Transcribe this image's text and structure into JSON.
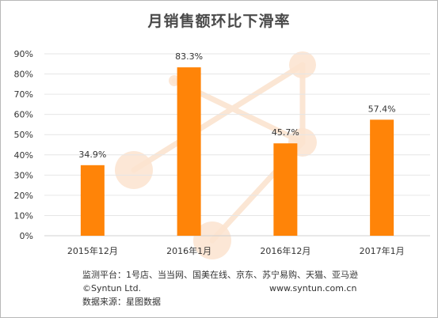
{
  "chart_data": {
    "type": "bar",
    "title": "月销售额环比下滑率",
    "categories": [
      "2015年12月",
      "2016年1月",
      "2016年12月",
      "2017年1月"
    ],
    "values": [
      34.9,
      83.3,
      45.7,
      57.4
    ],
    "value_labels": [
      "34.9%",
      "83.3%",
      "45.7%",
      "57.4%"
    ],
    "ylim": [
      0,
      90
    ],
    "y_ticks": [
      "0%",
      "10%",
      "20%",
      "30%",
      "40%",
      "50%",
      "60%",
      "70%",
      "80%",
      "90%"
    ],
    "y_tick_values": [
      0,
      10,
      20,
      30,
      40,
      50,
      60,
      70,
      80,
      90
    ],
    "grid": true,
    "bar_color": "#ff8408",
    "xlabel": "",
    "ylabel": ""
  },
  "footer": {
    "sources": "监测平台：1号店、当当网、国美在线、京东、苏宁易购、天猫、亚马逊",
    "copyright": "©Syntun Ltd.",
    "website": "www.syntun.com.cn",
    "data_source": "数据来源：星图数据"
  },
  "colors": {
    "bar": "#ff8408",
    "grid": "#e6e6e6",
    "decor": "#fbe3cf"
  }
}
